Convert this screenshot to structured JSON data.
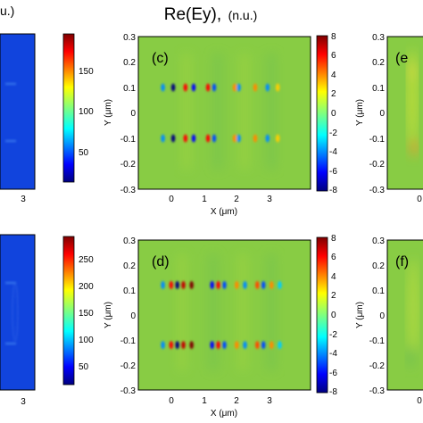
{
  "figure": {
    "title_main": "Re(Ey),",
    "title_unit": "(n.u.)",
    "left_title_fragment": "u.)",
    "panels": [
      {
        "id": "left-top",
        "type": "heatmap",
        "x_tick_labels": [
          "3"
        ],
        "colorbar": {
          "ticks": [
            "50",
            "100",
            "150"
          ],
          "range": [
            0,
            190
          ]
        },
        "background_color": "#1144dd"
      },
      {
        "id": "left-bottom",
        "type": "heatmap",
        "x_tick_labels": [
          "3"
        ],
        "colorbar": {
          "ticks": [
            "50",
            "100",
            "150",
            "200",
            "250"
          ],
          "range": [
            0,
            280
          ]
        },
        "background_color": "#1144dd"
      },
      {
        "id": "c",
        "label": "(c)",
        "type": "heatmap",
        "xlabel": "X (μm)",
        "ylabel": "Y (μm)",
        "x_tick_labels": [
          "0",
          "1",
          "2",
          "3"
        ],
        "y_tick_labels": [
          "0.3",
          "0.2",
          "0.1",
          "0",
          "-0.1",
          "-0.2",
          "-0.3"
        ],
        "colorbar": {
          "ticks": [
            "8",
            "6",
            "4",
            "2",
            "0",
            "-2",
            "-4",
            "-6",
            "-8"
          ],
          "range": [
            -8,
            8
          ]
        },
        "background_color": "#88cc44"
      },
      {
        "id": "d",
        "label": "(d)",
        "type": "heatmap",
        "xlabel": "X (μm)",
        "ylabel": "Y (μm)",
        "x_tick_labels": [
          "0",
          "1",
          "2",
          "3"
        ],
        "y_tick_labels": [
          "0.3",
          "0.2",
          "0.1",
          "0",
          "-0.1",
          "-0.2",
          "-0.3"
        ],
        "colorbar": {
          "ticks": [
            "8",
            "6",
            "4",
            "2",
            "0",
            "-2",
            "-4",
            "-6",
            "-8"
          ],
          "range": [
            -8,
            8
          ]
        },
        "background_color": "#88cc44"
      },
      {
        "id": "e",
        "label": "(e",
        "type": "heatmap",
        "ylabel": "Y (μm)",
        "x_tick_labels": [
          "0"
        ],
        "y_tick_labels": [
          "0.3",
          "0.2",
          "0.1",
          "0",
          "-0.1",
          "-0.2",
          "-0.3"
        ],
        "background_color": "#88cc44"
      },
      {
        "id": "f",
        "label": "(f)",
        "type": "heatmap",
        "ylabel": "Y (μm)",
        "x_tick_labels": [
          "0"
        ],
        "y_tick_labels": [
          "0.3",
          "0.2",
          "0.1",
          "0",
          "-0.1",
          "-0.2",
          "-0.3"
        ],
        "background_color": "#88cc44"
      }
    ]
  },
  "chart_data": [
    {
      "type": "heatmap",
      "panel": "c",
      "xlim": [
        -0.6,
        3.6
      ],
      "ylim": [
        -0.3,
        0.3
      ],
      "colorbar_range": [
        -8,
        8
      ],
      "hotspot_rows_y": [
        0.1,
        -0.1
      ],
      "hotspot_x": [
        0.0,
        0.25,
        0.55,
        0.75,
        1.1,
        1.25,
        1.75,
        1.85,
        2.25,
        2.55,
        2.8
      ],
      "hotspot_values": [
        -4,
        -8,
        6,
        -6,
        6,
        -5,
        4,
        -4,
        4,
        -4,
        3
      ]
    },
    {
      "type": "heatmap",
      "panel": "d",
      "xlim": [
        -0.6,
        3.6
      ],
      "ylim": [
        -0.3,
        0.3
      ],
      "colorbar_range": [
        -8,
        8
      ],
      "hotspot_rows_y": [
        0.12,
        -0.12
      ],
      "hotspot_x": [
        0.0,
        0.2,
        0.35,
        0.5,
        0.7,
        1.2,
        1.35,
        1.5,
        1.8,
        2.0,
        2.3,
        2.45,
        2.65,
        2.85
      ],
      "hotspot_values": [
        -4,
        6,
        -8,
        7,
        8,
        -6,
        6,
        -5,
        4,
        -4,
        5,
        -5,
        4,
        -3
      ]
    }
  ]
}
